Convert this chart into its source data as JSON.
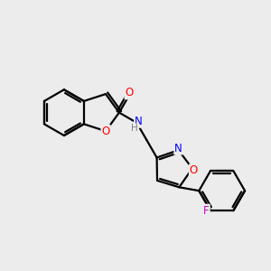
{
  "background_color": "#ececec",
  "bond_color": "#000000",
  "atom_colors": {
    "O": "#ff0000",
    "N": "#0000ff",
    "F": "#cc00cc",
    "H": "#808080",
    "C": "#000000"
  },
  "bond_width": 1.6,
  "font_size_atoms": 8.5,
  "fig_width": 3.0,
  "fig_height": 3.0,
  "dpi": 100,
  "xlim": [
    0,
    10
  ],
  "ylim": [
    0,
    10
  ]
}
